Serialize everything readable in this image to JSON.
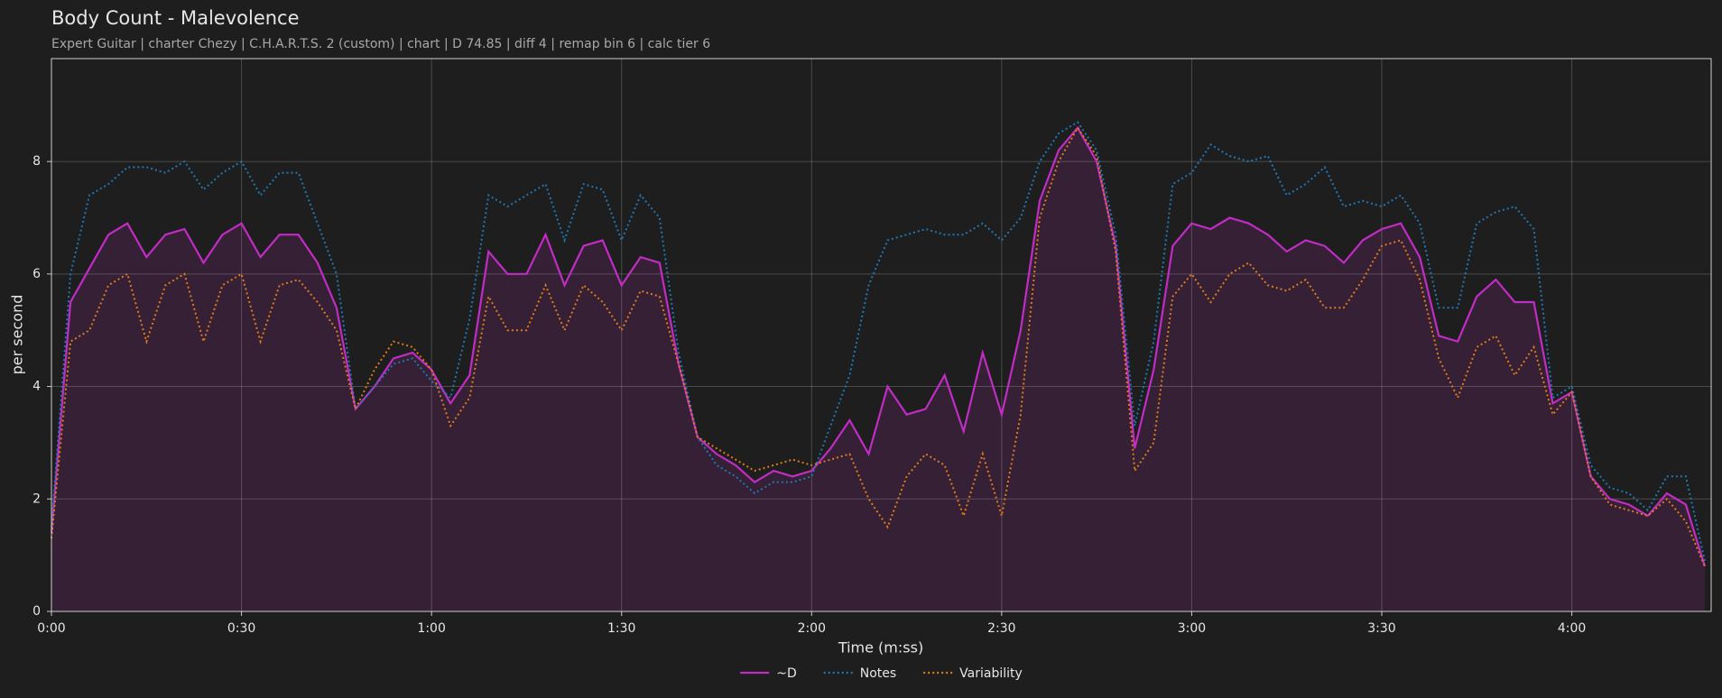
{
  "chart_data": {
    "type": "line",
    "title": "Body Count - Malevolence",
    "subtitle": "Expert Guitar  |  charter Chezy  |  C.H.A.R.T.S. 2 (custom)  |  chart  |  D 74.85  |  diff 4  |  remap bin 6  |  calc tier 6",
    "xlabel": "Time (m:ss)",
    "ylabel": "per second",
    "x": [
      0,
      3,
      6,
      9,
      12,
      15,
      18,
      21,
      24,
      27,
      30,
      33,
      36,
      39,
      42,
      45,
      48,
      51,
      54,
      57,
      60,
      63,
      66,
      69,
      72,
      75,
      78,
      81,
      84,
      87,
      90,
      93,
      96,
      99,
      102,
      105,
      108,
      111,
      114,
      117,
      120,
      123,
      126,
      129,
      132,
      135,
      138,
      141,
      144,
      147,
      150,
      153,
      156,
      159,
      162,
      165,
      168,
      171,
      174,
      177,
      180,
      183,
      186,
      189,
      192,
      195,
      198,
      201,
      204,
      207,
      210,
      213,
      216,
      219,
      222,
      225,
      228,
      231,
      234,
      237,
      240,
      243,
      246,
      249,
      252,
      255,
      258,
      261
    ],
    "series": [
      {
        "name": "~D",
        "color": "#c12cc4",
        "style": "solid",
        "area": true,
        "values": [
          1.4,
          5.5,
          6.1,
          6.7,
          6.9,
          6.3,
          6.7,
          6.8,
          6.2,
          6.7,
          6.9,
          6.3,
          6.7,
          6.7,
          6.2,
          5.4,
          3.6,
          4.0,
          4.5,
          4.6,
          4.3,
          3.7,
          4.2,
          6.4,
          6.0,
          6.0,
          6.7,
          5.8,
          6.5,
          6.6,
          5.8,
          6.3,
          6.2,
          4.4,
          3.1,
          2.8,
          2.6,
          2.3,
          2.5,
          2.4,
          2.5,
          2.9,
          3.4,
          2.8,
          4.0,
          3.5,
          3.6,
          4.2,
          3.2,
          4.6,
          3.5,
          5.0,
          7.3,
          8.2,
          8.6,
          8.0,
          6.5,
          2.9,
          4.3,
          6.5,
          6.9,
          6.8,
          7.0,
          6.9,
          6.7,
          6.4,
          6.6,
          6.5,
          6.2,
          6.6,
          6.8,
          6.9,
          6.3,
          4.9,
          4.8,
          5.6,
          5.9,
          5.5,
          5.5,
          3.7,
          3.9,
          2.4,
          2.0,
          1.9,
          1.7,
          2.1,
          1.9,
          0.8
        ]
      },
      {
        "name": "Notes",
        "color": "#1f77b4",
        "style": "dotted",
        "values": [
          1.5,
          6.0,
          7.4,
          7.6,
          7.9,
          7.9,
          7.8,
          8.0,
          7.5,
          7.8,
          8.0,
          7.4,
          7.8,
          7.8,
          6.9,
          6.0,
          3.6,
          4.0,
          4.4,
          4.5,
          4.1,
          3.8,
          5.2,
          7.4,
          7.2,
          7.4,
          7.6,
          6.6,
          7.6,
          7.5,
          6.6,
          7.4,
          7.0,
          4.6,
          3.1,
          2.6,
          2.4,
          2.1,
          2.3,
          2.3,
          2.4,
          3.3,
          4.2,
          5.8,
          6.6,
          6.7,
          6.8,
          6.7,
          6.7,
          6.9,
          6.6,
          7.0,
          8.0,
          8.5,
          8.7,
          8.2,
          6.7,
          3.3,
          4.8,
          7.6,
          7.8,
          8.3,
          8.1,
          8.0,
          8.1,
          7.4,
          7.6,
          7.9,
          7.2,
          7.3,
          7.2,
          7.4,
          6.9,
          5.4,
          5.4,
          6.9,
          7.1,
          7.2,
          6.8,
          3.8,
          4.0,
          2.6,
          2.2,
          2.1,
          1.8,
          2.4,
          2.4,
          0.9
        ]
      },
      {
        "name": "Variability",
        "color": "#e07b1a",
        "style": "dotted",
        "values": [
          1.3,
          4.8,
          5.0,
          5.8,
          6.0,
          4.8,
          5.8,
          6.0,
          4.8,
          5.8,
          6.0,
          4.8,
          5.8,
          5.9,
          5.5,
          5.0,
          3.6,
          4.3,
          4.8,
          4.7,
          4.3,
          3.3,
          3.8,
          5.6,
          5.0,
          5.0,
          5.8,
          5.0,
          5.8,
          5.5,
          5.0,
          5.7,
          5.6,
          4.4,
          3.1,
          2.9,
          2.7,
          2.5,
          2.6,
          2.7,
          2.6,
          2.7,
          2.8,
          2.0,
          1.5,
          2.4,
          2.8,
          2.6,
          1.7,
          2.8,
          1.7,
          3.5,
          7.0,
          8.0,
          8.6,
          8.1,
          6.4,
          2.5,
          3.0,
          5.6,
          6.0,
          5.5,
          6.0,
          6.2,
          5.8,
          5.7,
          5.9,
          5.4,
          5.4,
          5.9,
          6.5,
          6.6,
          5.9,
          4.5,
          3.8,
          4.7,
          4.9,
          4.2,
          4.7,
          3.5,
          3.9,
          2.4,
          1.9,
          1.8,
          1.7,
          2.0,
          1.6,
          0.8
        ]
      }
    ],
    "xlim": [
      0,
      262
    ],
    "xticks": [
      {
        "value": 0,
        "label": "0:00"
      },
      {
        "value": 30,
        "label": "0:30"
      },
      {
        "value": 60,
        "label": "1:00"
      },
      {
        "value": 90,
        "label": "1:30"
      },
      {
        "value": 120,
        "label": "2:00"
      },
      {
        "value": 150,
        "label": "2:30"
      },
      {
        "value": 180,
        "label": "3:00"
      },
      {
        "value": 210,
        "label": "3:30"
      },
      {
        "value": 240,
        "label": "4:00"
      }
    ],
    "ylim": [
      0,
      9.83
    ],
    "yticks": [
      0,
      2,
      4,
      6,
      8
    ],
    "grid": true,
    "legend": "below"
  }
}
